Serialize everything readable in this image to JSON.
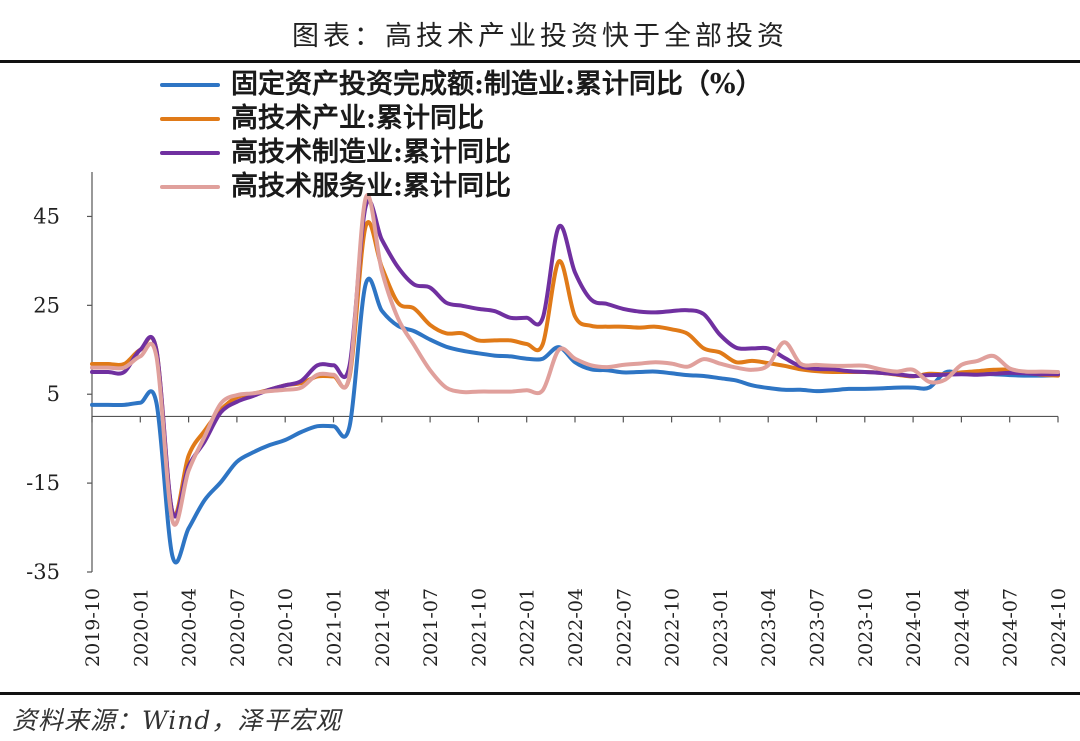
{
  "header": {
    "title": "图表：高技术产业投资快于全部投资"
  },
  "footer": {
    "source": "资料来源：Wind，泽平宏观"
  },
  "chart_data": {
    "type": "line",
    "title": "图表：高技术产业投资快于全部投资",
    "xlabel": "",
    "ylabel": "",
    "ylim": [
      -35,
      55
    ],
    "yticks": [
      -35,
      -15,
      5,
      25,
      45
    ],
    "ytick_labels": [
      "-35",
      "-15",
      "5",
      "25",
      "45"
    ],
    "x": [
      "2019-10",
      "2019-11",
      "2019-12",
      "2020-01",
      "2020-02",
      "2020-03",
      "2020-04",
      "2020-05",
      "2020-06",
      "2020-07",
      "2020-08",
      "2020-09",
      "2020-10",
      "2020-11",
      "2020-12",
      "2021-01",
      "2021-02",
      "2021-03",
      "2021-04",
      "2021-05",
      "2021-06",
      "2021-07",
      "2021-08",
      "2021-09",
      "2021-10",
      "2021-11",
      "2021-12",
      "2022-01",
      "2022-02",
      "2022-03",
      "2022-04",
      "2022-05",
      "2022-06",
      "2022-07",
      "2022-08",
      "2022-09",
      "2022-10",
      "2022-11",
      "2022-12",
      "2023-01",
      "2023-02",
      "2023-03",
      "2023-04",
      "2023-05",
      "2023-06",
      "2023-07",
      "2023-08",
      "2023-09",
      "2023-10",
      "2023-11",
      "2023-12",
      "2024-01",
      "2024-02",
      "2024-03",
      "2024-04",
      "2024-05",
      "2024-06",
      "2024-07",
      "2024-08",
      "2024-09",
      "2024-10"
    ],
    "xtick_labels": [
      "2019-10",
      "2020-01",
      "2020-04",
      "2020-07",
      "2020-10",
      "2021-01",
      "2021-04",
      "2021-07",
      "2021-10",
      "2022-01",
      "2022-04",
      "2022-07",
      "2022-10",
      "2023-01",
      "2023-04",
      "2023-07",
      "2023-10",
      "2024-01",
      "2024-04",
      "2024-07",
      "2024-10"
    ],
    "legend_position": "top-left",
    "series": [
      {
        "name": "固定资产投资完成额:制造业:累计同比（%）",
        "color": "#2e75c4",
        "values": [
          2.6,
          2.6,
          2.6,
          3.1,
          3.1,
          -31.5,
          -25.2,
          -18.8,
          -14.8,
          -10.2,
          -8.1,
          -6.5,
          -5.3,
          -3.5,
          -2.2,
          -2.2,
          -2.2,
          29.8,
          23.8,
          20.4,
          19.2,
          17.3,
          15.7,
          14.8,
          14.2,
          13.7,
          13.5,
          13.0,
          13.0,
          15.6,
          12.2,
          10.6,
          10.4,
          9.9,
          10.0,
          10.1,
          9.7,
          9.3,
          9.1,
          8.6,
          8.1,
          7.0,
          6.4,
          6.0,
          6.0,
          5.7,
          5.9,
          6.2,
          6.2,
          6.3,
          6.5,
          6.5,
          6.5,
          9.9,
          9.7,
          9.6,
          9.5,
          9.3,
          9.2,
          9.2,
          9.3
        ]
      },
      {
        "name": "高技术产业:累计同比",
        "color": "#e07a18",
        "values": [
          11.8,
          11.8,
          11.8,
          15.0,
          15.0,
          -21.6,
          -8.8,
          -3.2,
          1.5,
          4.3,
          5.1,
          6.0,
          7.0,
          7.5,
          9.0,
          9.0,
          9.0,
          42.8,
          33.6,
          25.6,
          24.3,
          20.6,
          18.7,
          18.7,
          17.1,
          17.1,
          17.1,
          16.3,
          16.3,
          34.9,
          22.5,
          20.4,
          20.2,
          20.2,
          20.0,
          20.2,
          19.6,
          18.6,
          15.3,
          14.4,
          12.2,
          12.5,
          12.0,
          11.4,
          10.6,
          10.2,
          10.0,
          10.0,
          10.0,
          9.8,
          9.4,
          9.0,
          9.6,
          9.5,
          9.9,
          10.2,
          10.5,
          10.5,
          9.9,
          9.4,
          9.2
        ]
      },
      {
        "name": "高技术制造业:累计同比",
        "color": "#7030a0",
        "values": [
          10.0,
          10.0,
          10.0,
          15.0,
          15.0,
          -21.6,
          -11.2,
          -5.6,
          0.9,
          3.3,
          4.6,
          6.0,
          7.0,
          8.0,
          11.5,
          11.5,
          11.5,
          47.3,
          39.8,
          33.6,
          29.7,
          29.0,
          25.6,
          24.9,
          24.2,
          23.7,
          22.2,
          22.2,
          22.2,
          42.7,
          32.4,
          26.3,
          25.3,
          24.2,
          23.6,
          23.4,
          23.7,
          23.9,
          23.0,
          18.4,
          15.5,
          15.3,
          15.3,
          13.2,
          11.3,
          10.7,
          10.6,
          10.2,
          10.0,
          9.8,
          9.5,
          9.1,
          9.3,
          9.4,
          9.5,
          9.4,
          9.6,
          9.8,
          9.7,
          9.5,
          9.5
        ]
      },
      {
        "name": "高技术服务业:累计同比",
        "color": "#e0a09c",
        "values": [
          11.0,
          11.0,
          11.0,
          13.5,
          13.5,
          -23.5,
          -12.2,
          -4.5,
          2.9,
          4.8,
          5.2,
          5.7,
          6.0,
          6.5,
          9.4,
          9.4,
          9.4,
          49.2,
          32.8,
          22.1,
          16.1,
          10.4,
          6.5,
          5.5,
          5.6,
          5.6,
          5.6,
          5.9,
          5.9,
          15.0,
          13.0,
          11.5,
          11.1,
          11.6,
          11.9,
          12.2,
          11.9,
          11.2,
          12.9,
          11.9,
          11.0,
          10.5,
          11.5,
          16.7,
          11.9,
          11.6,
          11.4,
          11.4,
          11.4,
          10.6,
          10.1,
          10.5,
          7.8,
          8.3,
          11.6,
          12.5,
          13.6,
          10.8,
          10.1,
          10.1,
          10.0
        ]
      }
    ]
  }
}
